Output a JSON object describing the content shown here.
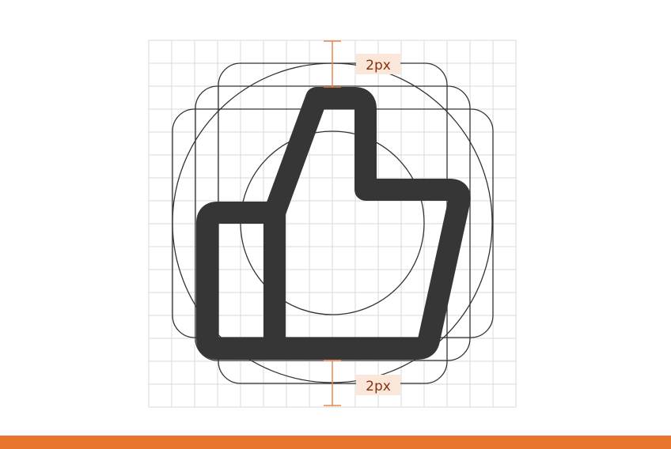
{
  "measurements": {
    "top_label": "2px",
    "bottom_label": "2px"
  },
  "colors": {
    "accent": "#e8762c",
    "icon": "#363636",
    "grid": "#d9d9d9",
    "guide": "#333333",
    "label_bg": "#fbe7d9",
    "label_text": "#8a2f0a"
  },
  "icon": {
    "name": "thumbs-up-icon"
  }
}
